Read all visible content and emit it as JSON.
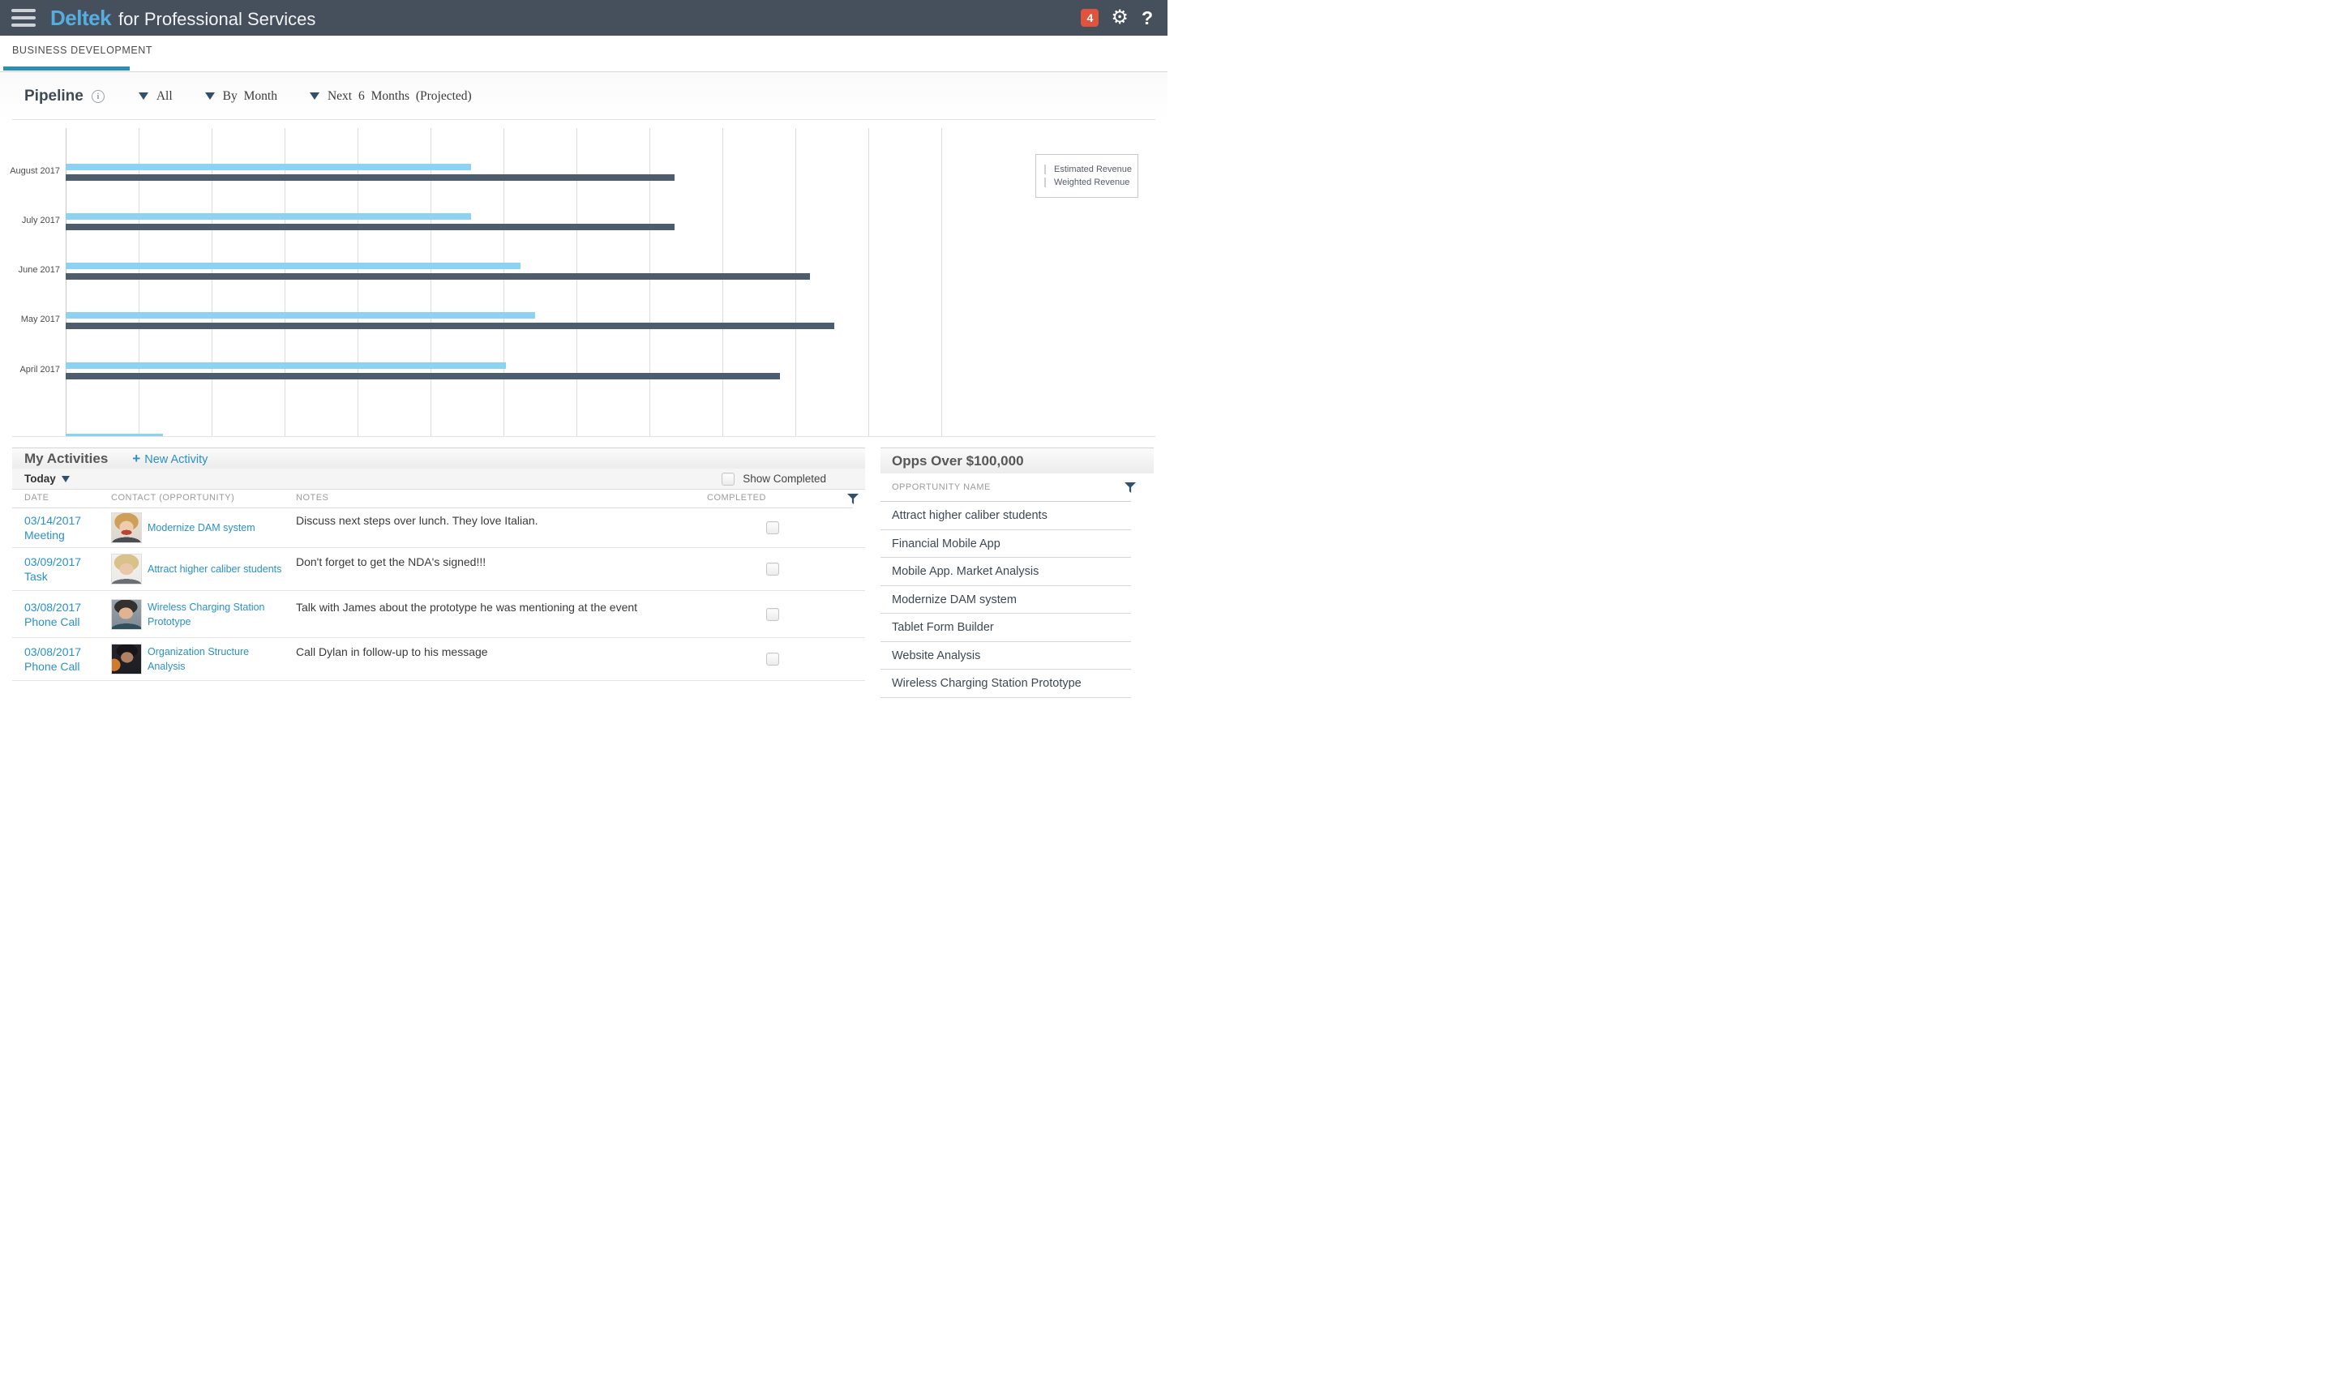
{
  "colors": {
    "header_bg": "#46505c",
    "brand_blue": "#56ade0",
    "accent_blue": "#2e8fb4",
    "badge_red": "#e2533c",
    "link_blue": "#2a90c8",
    "navy": "#31506b",
    "estimated_revenue": "#4e5d6d",
    "weighted_revenue": "#8ed2f3"
  },
  "header": {
    "brand": "Deltek",
    "brand_suffix": "for Professional Services",
    "notification_count": "4",
    "gear_icon": "settings-gear-icon",
    "help_icon": "help-question-icon",
    "menu_icon": "hamburger-menu-icon"
  },
  "tabs": [
    {
      "label": "BUSINESS DEVELOPMENT",
      "active": true
    }
  ],
  "pipeline": {
    "title": "Pipeline",
    "info_icon": "info-icon",
    "filters": [
      {
        "label": "All"
      },
      {
        "label": "By Month"
      },
      {
        "label": "Next 6 Months (Projected)"
      }
    ]
  },
  "chart_data": {
    "type": "bar",
    "orientation": "horizontal",
    "title": "Pipeline",
    "categories": [
      "August 2017",
      "July 2017",
      "June 2017",
      "May 2017",
      "April 2017"
    ],
    "series": [
      {
        "name": "Estimated Revenue",
        "color": "#4e5d6d",
        "values_pct_of_axis": [
          69.5,
          69.5,
          85.0,
          87.8,
          81.6
        ]
      },
      {
        "name": "Weighted Revenue",
        "color": "#8ed2f3",
        "values_pct_of_axis": [
          46.3,
          46.3,
          51.9,
          53.6,
          50.3
        ]
      }
    ],
    "partial_bottom_bar": {
      "series": "Weighted Revenue",
      "value_pct_of_axis": 11.1,
      "note": "sixth month row clipped at bottom edge"
    },
    "x_axis": {
      "tick_labels_visible": false,
      "gridline_count": 13
    },
    "grid": true,
    "legend_position": "top-right"
  },
  "activities": {
    "title": "My Activities",
    "new_activity": {
      "plus": "+",
      "label": "New Activity"
    },
    "today_label": "Today",
    "show_completed_label": "Show Completed",
    "show_completed_checked": false,
    "columns": [
      "DATE",
      "CONTACT (OPPORTUNITY)",
      "NOTES",
      "COMPLETED"
    ],
    "rows": [
      {
        "date": "03/14/2017",
        "type": "Meeting",
        "opportunity": "Modernize DAM system",
        "note": "Discuss next steps over lunch. They love Italian.",
        "completed": false
      },
      {
        "date": "03/09/2017",
        "type": "Task",
        "opportunity": "Attract higher caliber students",
        "note": "Don't forget to get the NDA's signed!!!",
        "completed": false
      },
      {
        "date": "03/08/2017",
        "type": "Phone Call",
        "opportunity": "Wireless Charging Station Prototype",
        "note": "Talk with James about the prototype he was mentioning at the event",
        "completed": false
      },
      {
        "date": "03/08/2017",
        "type": "Phone Call",
        "opportunity": "Organization Structure Analysis",
        "note": "Call Dylan in follow-up to his message",
        "completed": false
      }
    ]
  },
  "opps": {
    "title": "Opps Over $100,000",
    "column": "OPPORTUNITY NAME",
    "items": [
      "Attract higher caliber students",
      "Financial Mobile App",
      "Mobile App. Market Analysis",
      "Modernize DAM system",
      "Tablet Form Builder",
      "Website Analysis",
      "Wireless Charging Station Prototype"
    ]
  }
}
